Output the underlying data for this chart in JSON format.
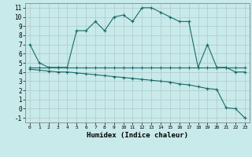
{
  "xlabel": "Humidex (Indice chaleur)",
  "background_color": "#c8eaea",
  "grid_color": "#b0c8c8",
  "line_color": "#1a6b6b",
  "xlim": [
    -0.5,
    23.5
  ],
  "ylim": [
    -1.5,
    11.5
  ],
  "xticks": [
    0,
    1,
    2,
    3,
    4,
    5,
    6,
    7,
    8,
    9,
    10,
    11,
    12,
    13,
    14,
    15,
    16,
    17,
    18,
    19,
    20,
    21,
    22,
    23
  ],
  "yticks": [
    -1,
    0,
    1,
    2,
    3,
    4,
    5,
    6,
    7,
    8,
    9,
    10,
    11
  ],
  "line1_x": [
    0,
    1,
    2,
    3,
    4,
    5,
    6,
    7,
    8,
    9,
    10,
    11,
    12,
    13,
    14,
    15,
    16,
    17,
    18,
    19,
    20,
    21,
    22,
    23
  ],
  "line1_y": [
    7,
    5,
    4.5,
    4.5,
    4.5,
    8.5,
    8.5,
    9.5,
    8.5,
    10,
    10.2,
    9.5,
    11,
    11,
    10.5,
    10,
    9.5,
    9.5,
    4.5,
    7.0,
    4.5,
    4.5,
    4.0,
    4.0
  ],
  "line2_x": [
    0,
    1,
    2,
    3,
    4,
    5,
    6,
    7,
    8,
    9,
    10,
    11,
    12,
    13,
    14,
    15,
    16,
    17,
    18,
    19,
    20,
    21,
    22,
    23
  ],
  "line2_y": [
    4.5,
    4.5,
    4.5,
    4.5,
    4.5,
    4.5,
    4.5,
    4.5,
    4.5,
    4.5,
    4.5,
    4.5,
    4.5,
    4.5,
    4.5,
    4.5,
    4.5,
    4.5,
    4.5,
    4.5,
    4.5,
    4.5,
    4.5,
    4.5
  ],
  "line3_x": [
    0,
    1,
    2,
    3,
    4,
    5,
    6,
    7,
    8,
    9,
    10,
    11,
    12,
    13,
    14,
    15,
    16,
    17,
    18,
    19,
    20,
    21,
    22,
    23
  ],
  "line3_y": [
    4.3,
    4.2,
    4.1,
    4.0,
    4.0,
    3.9,
    3.8,
    3.7,
    3.6,
    3.5,
    3.4,
    3.3,
    3.2,
    3.1,
    3.0,
    2.9,
    2.7,
    2.6,
    2.4,
    2.2,
    2.1,
    0.1,
    0.0,
    -1.0
  ]
}
